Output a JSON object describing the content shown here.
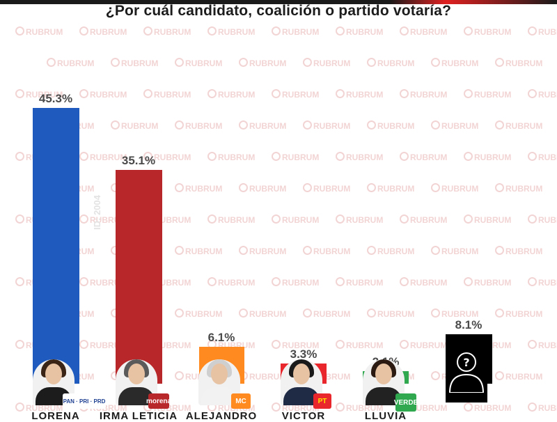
{
  "question": "¿Por cuál candidato, coalición o partido votaría?",
  "watermark": "RUBRUM",
  "id_tag": "ID: 2004",
  "colors": {
    "lorena": "#1f5bbf",
    "irma": "#b8282b",
    "alejandro": "#ff8a1f",
    "victor": "#e8262b",
    "lluvia": "#2fa84f",
    "undecided": "#000000"
  },
  "chart_data": {
    "type": "bar",
    "title": "¿Por cuál candidato, coalición o partido votaría?",
    "categories": [
      "LORENA",
      "IRMA LETICIA",
      "ALEJANDRO",
      "VICTOR",
      "LLUVIA",
      ""
    ],
    "values": [
      45.3,
      35.1,
      6.1,
      3.3,
      2.1,
      8.1
    ],
    "value_labels": [
      "45.3%",
      "35.1%",
      "6.1%",
      "3.3%",
      "2.1%",
      "8.1%"
    ],
    "party_logos": [
      "PAN · PRI · PRD",
      "morena",
      "MC",
      "PT",
      "VERDE",
      ""
    ],
    "ylim": [
      0,
      45.3
    ],
    "grid": false,
    "legend": "none"
  }
}
